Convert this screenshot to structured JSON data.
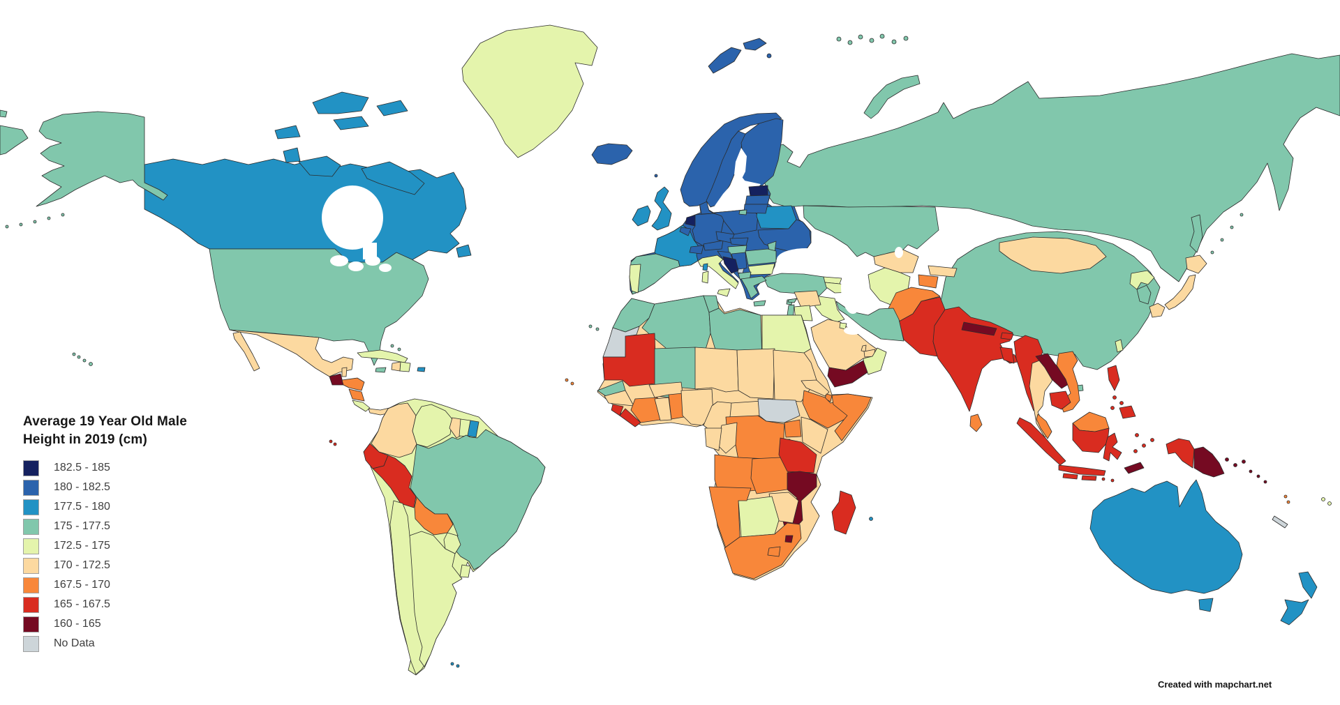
{
  "map": {
    "attribution": "Created with mapchart.net",
    "ocean_color": "#ffffff",
    "border_color": "#2b2b2b"
  },
  "legend": {
    "title_line1": "Average 19 Year Old Male",
    "title_line2": "Height in 2019 (cm)",
    "colors": {
      "c1": "#15215f",
      "c2": "#2b63ac",
      "c3": "#2292c4",
      "c4": "#81c7ac",
      "c5": "#e4f4ac",
      "c6": "#fcd9a0",
      "c7": "#f8873a",
      "c8": "#d92c20",
      "c9": "#750a22",
      "c10": "#cdd5d9"
    },
    "items": [
      {
        "key": "c1",
        "label": "182.5 - 185"
      },
      {
        "key": "c2",
        "label": "180 - 182.5"
      },
      {
        "key": "c3",
        "label": "177.5 - 180"
      },
      {
        "key": "c4",
        "label": "175 - 177.5"
      },
      {
        "key": "c5",
        "label": "172.5 - 175"
      },
      {
        "key": "c6",
        "label": "170 - 172.5"
      },
      {
        "key": "c7",
        "label": "167.5 - 170"
      },
      {
        "key": "c8",
        "label": "165 - 167.5"
      },
      {
        "key": "c9",
        "label": "160 - 165"
      },
      {
        "key": "c10",
        "label": "No Data"
      }
    ]
  },
  "regions": {
    "russia": "c4",
    "chukotka-fragment": "c4",
    "novaya-zemlya": "c4",
    "franz-josef": "c4",
    "svalbard": "c2",
    "sakhalin": "c4",
    "kuril-islands": "c4",
    "kazakhstan": "c4",
    "china": "c4",
    "mongolia": "c6",
    "north-korea": "c5",
    "south-korea": "c4",
    "japan": "c6",
    "taiwan": "c5",
    "hainan": "c4",
    "uzbekistan": "c6",
    "turkmenistan": "c5",
    "kyrgyzstan": "c6",
    "tajikistan": "c7",
    "afghanistan": "c7",
    "pakistan": "c8",
    "iran": "c4",
    "iraq": "c5",
    "syria": "c6",
    "lebanon": "c4",
    "israel": "c4",
    "jordan": "c5",
    "cyprus": "c4",
    "saudi-arabia": "c6",
    "kuwait": "c5",
    "qatar": "c6",
    "uae": "c6",
    "oman": "c5",
    "yemen": "c9",
    "turkey": "c4",
    "georgia": "c5",
    "azerbaijan": "c5",
    "india": "c8",
    "nepal": "c9",
    "bhutan": "c8",
    "bangladesh": "c8",
    "sri-lanka": "c7",
    "myanmar": "c8",
    "thailand": "c6",
    "laos": "c9",
    "vietnam": "c7",
    "cambodia": "c8",
    "malaysia": "c7",
    "indonesia": "c8",
    "timor": "c9",
    "philippines": "c8",
    "papua-new-guinea": "c9",
    "solomon-islands": "c9",
    "vanuatu": "c7",
    "new-caledonia": "c10",
    "fiji": "c5",
    "australia": "c3",
    "new-zealand": "c3",
    "europe-base": "c2",
    "portugal": "c5",
    "spain": "c4",
    "france": "c3",
    "netherlands": "c1",
    "belgium": "c2",
    "germany": "c2",
    "denmark": "c2",
    "switzerland": "c2",
    "austria": "c2",
    "czechia": "c2",
    "slovakia": "c2",
    "hungary": "c4",
    "poland": "c2",
    "belarus": "c3",
    "ukraine": "c2",
    "moldova": "c4",
    "romania": "c4",
    "bulgaria": "c5",
    "serbia": "c2",
    "croatia": "c2",
    "bosnia": "c1",
    "kosovo": "c10",
    "albania": "c4",
    "greece": "c4",
    "italy": "c5",
    "corsica": "c3",
    "uk": "c3",
    "ireland": "c3",
    "iceland": "c2",
    "faroe": "c2",
    "norway": "c2",
    "sweden": "c2",
    "finland": "c2",
    "estonia": "c1",
    "latvia": "c2",
    "lithuania": "c2",
    "kaliningrad": "c4",
    "africa-base": "c6",
    "morocco": "c4",
    "western-sahara": "c10",
    "algeria": "c4",
    "tunisia": "c4",
    "libya": "c4",
    "egypt": "c5",
    "mauritania": "c8",
    "mali": "c4",
    "senegal": "c4",
    "guinea": "c6",
    "sierra-leone": "c8",
    "liberia": "c8",
    "ivory-coast": "c7",
    "ghana": "c6",
    "togo-benin": "c7",
    "burkina-faso": "c6",
    "niger": "c6",
    "nigeria": "c6",
    "chad": "c6",
    "sudan": "c6",
    "eritrea": "c6",
    "djibouti": "c7",
    "ethiopia": "c7",
    "somalia": "c7",
    "cameroon": "c6",
    "central-african-republic": "c6",
    "south-sudan": "c10",
    "uganda": "c7",
    "kenya": "c6",
    "rwanda-burundi": "c8",
    "drc": "c7",
    "congo": "c6",
    "gabon": "c6",
    "angola": "c7",
    "zambia": "c7",
    "malawi": "c8",
    "tanzania": "c8",
    "mozambique": "c9",
    "zimbabwe": "c6",
    "botswana": "c5",
    "namibia": "c7",
    "south-africa": "c7",
    "lesotho": "c7",
    "eswatini": "c9",
    "madagascar": "c8",
    "reunion": "c3",
    "canary-islands": "c4",
    "cape-verde": "c7",
    "canada": "c3",
    "alaska": "c4",
    "usa": "c4",
    "greenland": "c5",
    "hawaii": "c4",
    "mexico": "c6",
    "guatemala": "c9",
    "belize": "c6",
    "honduras": "c7",
    "nicaragua": "c7",
    "costa-rica": "c5",
    "panama": "c6",
    "cuba": "c5",
    "jamaica": "c4",
    "haiti": "c6",
    "dominican-republic": "c5",
    "puerto-rico": "c3",
    "bahamas": "c4",
    "south-america-base": "c5",
    "colombia": "c6",
    "venezuela": "c5",
    "guyana": "c6",
    "suriname": "c5",
    "french-guiana": "c3",
    "ecuador": "c8",
    "peru": "c8",
    "brazil": "c4",
    "bolivia": "c7",
    "paraguay": "c5",
    "chile": "c5",
    "argentina": "c5",
    "uruguay": "c5",
    "falkland-islands": "c3",
    "galapagos": "c8"
  }
}
